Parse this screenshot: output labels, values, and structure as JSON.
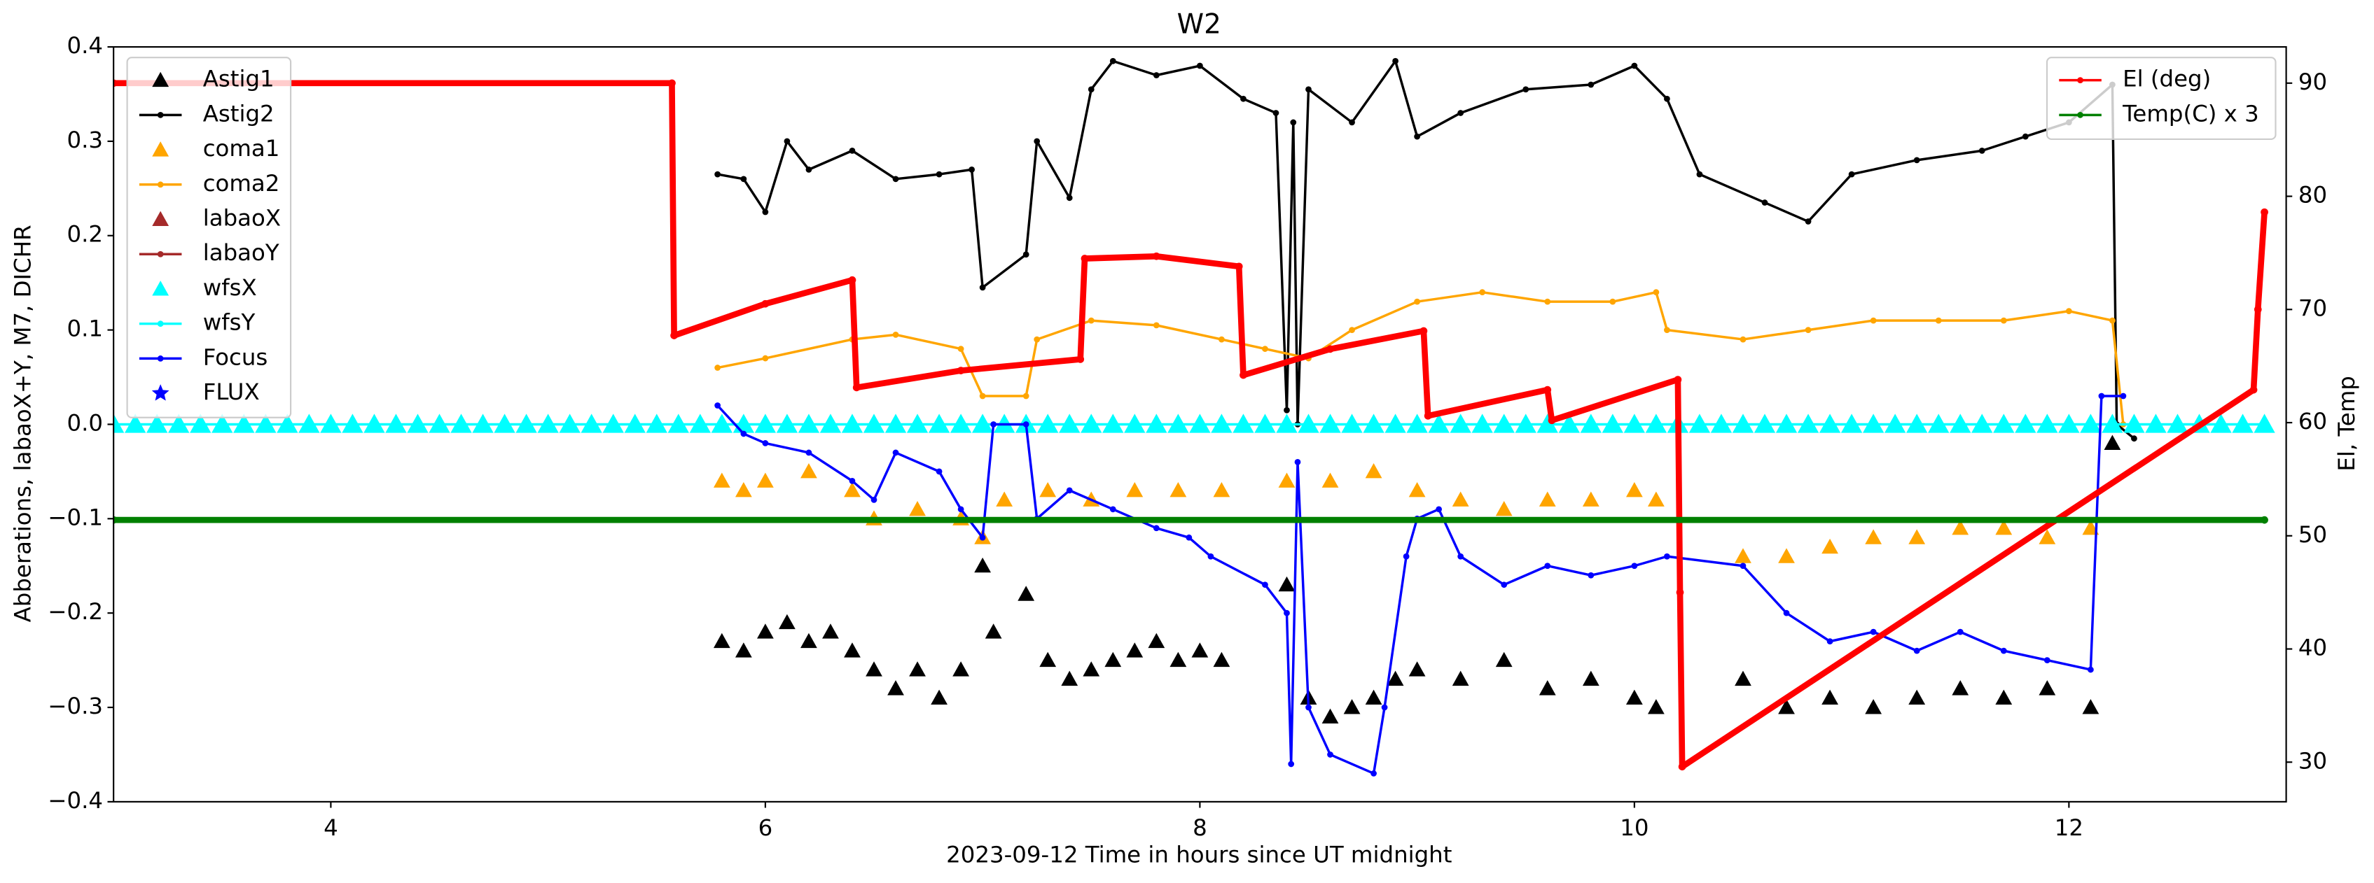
{
  "chart_data": {
    "type": "line",
    "title": "W2",
    "x_label": "2023-09-12  Time in hours since UT midnight",
    "y_label": "Abberations, labaoX+Y, M7, DICHR",
    "y2_label": "El, Temp",
    "xlim": [
      3,
      13
    ],
    "xticks": [
      4,
      6,
      8,
      10,
      12
    ],
    "ylim": [
      -0.4,
      0.4
    ],
    "yticks": [
      {
        "value": -0.4,
        "label": "−0.4"
      },
      {
        "value": -0.3,
        "label": "−0.3"
      },
      {
        "value": -0.2,
        "label": "−0.2"
      },
      {
        "value": -0.1,
        "label": "−0.1"
      },
      {
        "value": 0,
        "label": "0.0"
      },
      0.1,
      0.2,
      0.3,
      0.4
    ],
    "y2lim": [
      26.5,
      93.2
    ],
    "y2ticks": [
      30,
      40,
      50,
      60,
      70,
      80,
      90
    ],
    "legend": "upper left",
    "y2_legend": "upper right",
    "series": [
      {
        "name": "Astig1",
        "color": "#000000",
        "marker": "^",
        "linestyle": "none",
        "x": [
          5.8,
          5.9,
          6.0,
          6.1,
          6.2,
          6.3,
          6.4,
          6.5,
          6.6,
          6.7,
          6.8,
          6.9,
          7.0,
          7.05,
          7.2,
          7.3,
          7.4,
          7.5,
          7.6,
          7.7,
          7.8,
          7.9,
          8.0,
          8.1,
          8.4,
          8.5,
          8.6,
          8.7,
          8.8,
          8.9,
          9.0,
          9.2,
          9.4,
          9.6,
          9.8,
          10.0,
          10.1,
          10.5,
          10.7,
          10.9,
          11.1,
          11.3,
          11.5,
          11.7,
          11.9,
          12.1,
          12.2
        ],
        "values": [
          -0.23,
          -0.24,
          -0.22,
          -0.21,
          -0.23,
          -0.22,
          -0.24,
          -0.26,
          -0.28,
          -0.26,
          -0.29,
          -0.26,
          -0.15,
          -0.22,
          -0.18,
          -0.25,
          -0.27,
          -0.26,
          -0.25,
          -0.24,
          -0.23,
          -0.25,
          -0.24,
          -0.25,
          -0.17,
          -0.29,
          -0.31,
          -0.3,
          -0.29,
          -0.27,
          -0.26,
          -0.27,
          -0.25,
          -0.28,
          -0.27,
          -0.29,
          -0.3,
          -0.27,
          -0.3,
          -0.29,
          -0.3,
          -0.29,
          -0.28,
          -0.29,
          -0.28,
          -0.3,
          -0.02
        ]
      },
      {
        "name": "Astig2",
        "color": "#000000",
        "marker": "o",
        "linestyle": "-",
        "x": [
          5.78,
          5.9,
          6.0,
          6.1,
          6.2,
          6.4,
          6.6,
          6.8,
          6.95,
          7.0,
          7.2,
          7.25,
          7.4,
          7.5,
          7.6,
          7.8,
          8.0,
          8.2,
          8.35,
          8.4,
          8.43,
          8.45,
          8.5,
          8.7,
          8.9,
          9.0,
          9.2,
          9.5,
          9.8,
          10.0,
          10.15,
          10.3,
          10.6,
          10.8,
          11.0,
          11.3,
          11.6,
          11.8,
          12.0,
          12.2,
          12.22,
          12.3
        ],
        "values": [
          0.265,
          0.26,
          0.225,
          0.3,
          0.27,
          0.29,
          0.26,
          0.265,
          0.27,
          0.145,
          0.18,
          0.3,
          0.24,
          0.355,
          0.385,
          0.37,
          0.38,
          0.345,
          0.33,
          0.015,
          0.32,
          0,
          0.355,
          0.32,
          0.385,
          0.305,
          0.33,
          0.355,
          0.36,
          0.38,
          0.345,
          0.265,
          0.235,
          0.215,
          0.265,
          0.28,
          0.29,
          0.305,
          0.32,
          0.36,
          0,
          -0.015
        ]
      },
      {
        "name": "coma1",
        "color": "#ffa500",
        "marker": "^",
        "linestyle": "none",
        "x": [
          5.8,
          5.9,
          6.0,
          6.2,
          6.4,
          6.5,
          6.7,
          6.9,
          7.0,
          7.1,
          7.3,
          7.5,
          7.7,
          7.9,
          8.1,
          8.4,
          8.6,
          8.8,
          9.0,
          9.2,
          9.4,
          9.6,
          9.8,
          10.0,
          10.1,
          10.5,
          10.7,
          10.9,
          11.1,
          11.3,
          11.5,
          11.7,
          11.9,
          12.1
        ],
        "values": [
          -0.06,
          -0.07,
          -0.06,
          -0.05,
          -0.07,
          -0.1,
          -0.09,
          -0.1,
          -0.12,
          -0.08,
          -0.07,
          -0.08,
          -0.07,
          -0.07,
          -0.07,
          -0.06,
          -0.06,
          -0.05,
          -0.07,
          -0.08,
          -0.09,
          -0.08,
          -0.08,
          -0.07,
          -0.08,
          -0.14,
          -0.14,
          -0.13,
          -0.12,
          -0.12,
          -0.11,
          -0.11,
          -0.12,
          -0.11
        ]
      },
      {
        "name": "coma2",
        "color": "#ffa500",
        "marker": "o",
        "linestyle": "-",
        "x": [
          5.78,
          6.0,
          6.4,
          6.6,
          6.9,
          7.0,
          7.2,
          7.25,
          7.5,
          7.8,
          8.1,
          8.3,
          8.5,
          8.7,
          9.0,
          9.3,
          9.6,
          9.9,
          10.1,
          10.15,
          10.5,
          10.8,
          11.1,
          11.4,
          11.7,
          12.0,
          12.2,
          12.25
        ],
        "values": [
          0.06,
          0.07,
          0.09,
          0.095,
          0.08,
          0.03,
          0.03,
          0.09,
          0.11,
          0.105,
          0.09,
          0.08,
          0.07,
          0.1,
          0.13,
          0.14,
          0.13,
          0.13,
          0.14,
          0.1,
          0.09,
          0.1,
          0.11,
          0.11,
          0.11,
          0.12,
          0.11,
          0
        ]
      },
      {
        "name": "labaoX",
        "color": "#a52a2a",
        "marker": "^",
        "linestyle": "none",
        "x": [],
        "values": []
      },
      {
        "name": "labaoY",
        "color": "#a52a2a",
        "marker": "o",
        "linestyle": "-",
        "x": [],
        "values": []
      },
      {
        "name": "wfsX",
        "color": "#00ffff",
        "marker": "^",
        "linestyle": "none",
        "x": [
          3.0,
          3.1,
          3.2,
          3.3,
          3.4,
          3.5,
          3.6,
          3.7,
          3.8,
          3.9,
          4.0,
          4.1,
          4.2,
          4.3,
          4.4,
          4.5,
          4.6,
          4.7,
          4.8,
          4.9,
          5.0,
          5.1,
          5.2,
          5.3,
          5.4,
          5.5,
          5.6,
          5.7,
          5.8,
          5.9,
          6.0,
          6.1,
          6.2,
          6.3,
          6.4,
          6.5,
          6.6,
          6.7,
          6.8,
          6.9,
          7.0,
          7.1,
          7.2,
          7.3,
          7.4,
          7.5,
          7.6,
          7.7,
          7.8,
          7.9,
          8.0,
          8.1,
          8.2,
          8.3,
          8.4,
          8.5,
          8.6,
          8.7,
          8.8,
          8.9,
          9.0,
          9.1,
          9.2,
          9.3,
          9.4,
          9.5,
          9.6,
          9.7,
          9.8,
          9.9,
          10.0,
          10.1,
          10.2,
          10.3,
          10.4,
          10.5,
          10.6,
          10.7,
          10.8,
          10.9,
          11.0,
          11.1,
          11.2,
          11.3,
          11.4,
          11.5,
          11.6,
          11.7,
          11.8,
          11.9,
          12.0,
          12.1,
          12.2,
          12.3,
          12.4,
          12.5,
          12.6,
          12.7,
          12.8,
          12.9
        ],
        "values": [
          0,
          0,
          0,
          0,
          0,
          0,
          0,
          0,
          0,
          0,
          0,
          0,
          0,
          0,
          0,
          0,
          0,
          0,
          0,
          0,
          0,
          0,
          0,
          0,
          0,
          0,
          0,
          0,
          0,
          0,
          0,
          0,
          0,
          0,
          0,
          0,
          0,
          0,
          0,
          0,
          0,
          0,
          0,
          0,
          0,
          0,
          0,
          0,
          0,
          0,
          0,
          0,
          0,
          0,
          0,
          0,
          0,
          0,
          0,
          0,
          0,
          0,
          0,
          0,
          0,
          0,
          0,
          0,
          0,
          0,
          0,
          0,
          0,
          0,
          0,
          0,
          0,
          0,
          0,
          0,
          0,
          0,
          0,
          0,
          0,
          0,
          0,
          0,
          0,
          0,
          0,
          0,
          0,
          0,
          0,
          0,
          0,
          0,
          0,
          0
        ]
      },
      {
        "name": "wfsY",
        "color": "#00ffff",
        "marker": "o",
        "linestyle": "-",
        "x": [
          3.0,
          12.9
        ],
        "values": [
          0,
          0
        ]
      },
      {
        "name": "Focus",
        "color": "#0000ff",
        "marker": "o",
        "linestyle": "-",
        "x": [
          5.78,
          5.9,
          6.0,
          6.2,
          6.4,
          6.5,
          6.6,
          6.8,
          6.9,
          7.0,
          7.05,
          7.2,
          7.25,
          7.4,
          7.6,
          7.8,
          7.95,
          8.05,
          8.3,
          8.4,
          8.42,
          8.45,
          8.5,
          8.6,
          8.8,
          8.85,
          8.95,
          9.0,
          9.1,
          9.2,
          9.4,
          9.6,
          9.8,
          10.0,
          10.15,
          10.5,
          10.7,
          10.9,
          11.1,
          11.3,
          11.5,
          11.7,
          11.9,
          12.1,
          12.15,
          12.25
        ],
        "values": [
          0.02,
          -0.01,
          -0.02,
          -0.03,
          -0.06,
          -0.08,
          -0.03,
          -0.05,
          -0.09,
          -0.12,
          0,
          0,
          -0.1,
          -0.07,
          -0.09,
          -0.11,
          -0.12,
          -0.14,
          -0.17,
          -0.2,
          -0.36,
          -0.04,
          -0.3,
          -0.35,
          -0.37,
          -0.3,
          -0.14,
          -0.1,
          -0.09,
          -0.14,
          -0.17,
          -0.15,
          -0.16,
          -0.15,
          -0.14,
          -0.15,
          -0.2,
          -0.23,
          -0.22,
          -0.24,
          -0.22,
          -0.24,
          -0.25,
          -0.26,
          0.03,
          0.03
        ]
      },
      {
        "name": "FLUX",
        "color": "#0000ff",
        "marker": "*",
        "linestyle": "none",
        "x": [],
        "values": []
      },
      {
        "name": "El (deg)",
        "color": "#ff0000",
        "marker": "o",
        "linestyle": "-",
        "axis": "y2",
        "x": [
          3,
          5.57,
          5.58,
          6.0,
          6.4,
          6.42,
          6.9,
          7.45,
          7.47,
          7.8,
          8.18,
          8.2,
          8.6,
          9.03,
          9.05,
          9.6,
          9.62,
          10.2,
          10.21,
          10.22,
          12.85,
          12.87,
          12.9
        ],
        "values": [
          90,
          90,
          67.7,
          70.5,
          72.6,
          63.1,
          64.6,
          65.6,
          74.5,
          74.7,
          73.8,
          64.2,
          66.5,
          68.1,
          60.6,
          62.9,
          60.2,
          63.8,
          45,
          29.6,
          62.9,
          70,
          78.6
        ]
      },
      {
        "name": "Temp(C) x 3",
        "color": "#008000",
        "marker": "o",
        "linestyle": "-",
        "axis": "y2",
        "x": [
          3,
          12.9
        ],
        "values": [
          51.4,
          51.4
        ]
      }
    ]
  }
}
